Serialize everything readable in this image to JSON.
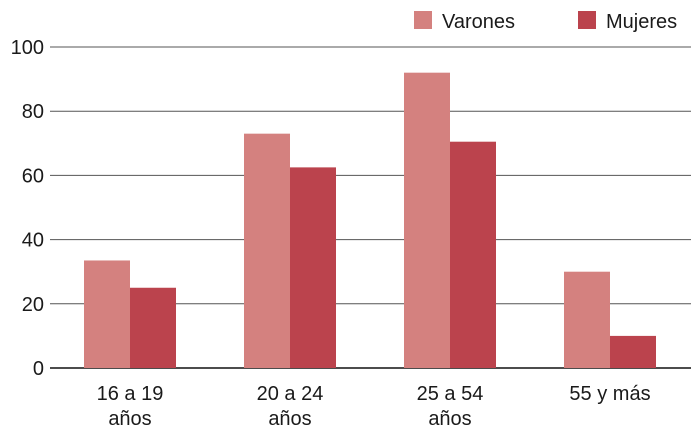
{
  "chart_data": {
    "type": "bar",
    "title": "",
    "xlabel": "",
    "ylabel": "",
    "ylim": [
      0,
      100
    ],
    "yticks": [
      0,
      20,
      40,
      60,
      80,
      100
    ],
    "grid": true,
    "legend_position": "top-right",
    "categories": [
      [
        "16 a 19",
        "años"
      ],
      [
        "20 a 24",
        "años"
      ],
      [
        "25 a 54",
        "años"
      ],
      [
        "55 y más"
      ]
    ],
    "series": [
      {
        "name": "Varones",
        "color": "#d4817f",
        "values": [
          33.5,
          73,
          92,
          30
        ]
      },
      {
        "name": "Mujeres",
        "color": "#bb434d",
        "values": [
          25,
          62.5,
          70.5,
          10
        ]
      }
    ]
  }
}
